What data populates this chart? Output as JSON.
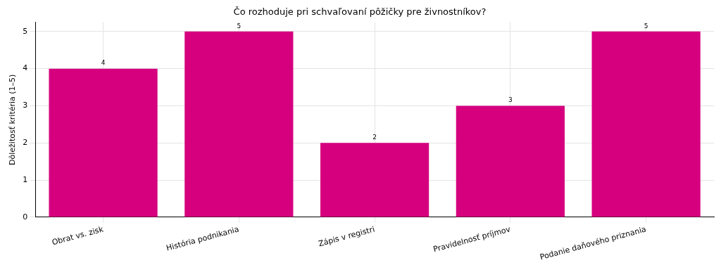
{
  "chart_data": {
    "type": "bar",
    "title": "Čo rozhoduje pri schvaľovaní pôžičky pre živnostníkov?",
    "ylabel": "Dôležitosť kritéria (1–5)",
    "categories": [
      "Obrat vs. zisk",
      "História podnikania",
      "Zápis v registri",
      "Pravidelnosť príjmov",
      "Podanie daňového priznania"
    ],
    "values": [
      4,
      5,
      2,
      3,
      5
    ],
    "color": "#d6007f",
    "ylim": [
      0,
      5.25
    ],
    "yticks": [
      0,
      1,
      2,
      3,
      4,
      5
    ],
    "grid": true,
    "data_labels": true
  }
}
